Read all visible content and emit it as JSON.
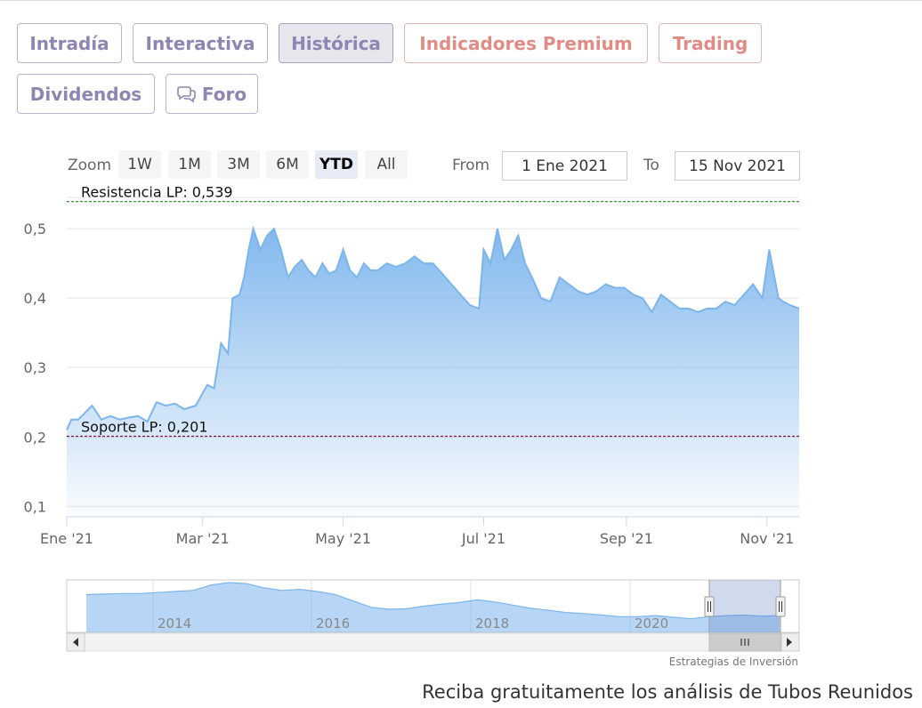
{
  "tabs": [
    {
      "label": "Intradía",
      "style": "normal"
    },
    {
      "label": "Interactiva",
      "style": "normal"
    },
    {
      "label": "Histórica",
      "style": "active"
    },
    {
      "label": "Indicadores Premium",
      "style": "premium"
    },
    {
      "label": "Trading",
      "style": "premium"
    },
    {
      "label": "Dividendos",
      "style": "normal"
    },
    {
      "label": "Foro",
      "style": "normal",
      "icon": "chat-bubbles-icon"
    }
  ],
  "range_selector": {
    "zoom_label": "Zoom",
    "buttons": [
      "1W",
      "1M",
      "3M",
      "6M",
      "YTD",
      "All"
    ],
    "selected": "YTD",
    "from_label": "From",
    "from_value": "1 Ene 2021",
    "to_label": "To",
    "to_value": "15 Nov 2021"
  },
  "chart_data": {
    "type": "area",
    "title": "",
    "xlabel": "",
    "ylabel": "",
    "x_ticks": [
      "Ene '21",
      "Mar '21",
      "May '21",
      "Jul '21",
      "Sep '21",
      "Nov '21"
    ],
    "y_ticks": [
      "0,1",
      "0,2",
      "0,3",
      "0,4",
      "0,5"
    ],
    "xlim": [
      "2021-01-01",
      "2021-11-15"
    ],
    "ylim": [
      0.085,
      0.545
    ],
    "grid": true,
    "color": "#7cb5ec",
    "plot_lines": [
      {
        "label": "Resistencia LP: 0,539",
        "value": 0.539,
        "color": "#228b22"
      },
      {
        "label": "Soporte LP: 0,201",
        "value": 0.201,
        "color": "#8b1a3a"
      }
    ],
    "series": [
      {
        "x": [
          "2021-01-01",
          "2021-01-03",
          "2021-01-06",
          "2021-01-09",
          "2021-01-12",
          "2021-01-16",
          "2021-01-20",
          "2021-01-24",
          "2021-01-28",
          "2021-02-01",
          "2021-02-05",
          "2021-02-09",
          "2021-02-13",
          "2021-02-17",
          "2021-02-21",
          "2021-02-26",
          "2021-03-03",
          "2021-03-06",
          "2021-03-09",
          "2021-03-12",
          "2021-03-14",
          "2021-03-17",
          "2021-03-19",
          "2021-03-21",
          "2021-03-23",
          "2021-03-26",
          "2021-03-29",
          "2021-04-01",
          "2021-04-04",
          "2021-04-07",
          "2021-04-10",
          "2021-04-13",
          "2021-04-16",
          "2021-04-19",
          "2021-04-22",
          "2021-04-25",
          "2021-04-28",
          "2021-05-01",
          "2021-05-04",
          "2021-05-07",
          "2021-05-10",
          "2021-05-13",
          "2021-05-16",
          "2021-05-20",
          "2021-05-24",
          "2021-05-28",
          "2021-06-01",
          "2021-06-05",
          "2021-06-09",
          "2021-06-13",
          "2021-06-17",
          "2021-06-21",
          "2021-06-25",
          "2021-06-29",
          "2021-07-01",
          "2021-07-04",
          "2021-07-07",
          "2021-07-10",
          "2021-07-13",
          "2021-07-16",
          "2021-07-19",
          "2021-07-22",
          "2021-07-26",
          "2021-07-30",
          "2021-08-03",
          "2021-08-07",
          "2021-08-11",
          "2021-08-15",
          "2021-08-19",
          "2021-08-23",
          "2021-08-27",
          "2021-08-31",
          "2021-09-04",
          "2021-09-08",
          "2021-09-12",
          "2021-09-16",
          "2021-09-20",
          "2021-09-24",
          "2021-09-28",
          "2021-10-02",
          "2021-10-06",
          "2021-10-10",
          "2021-10-14",
          "2021-10-18",
          "2021-10-22",
          "2021-10-26",
          "2021-10-30",
          "2021-11-02",
          "2021-11-04",
          "2021-11-06",
          "2021-11-08",
          "2021-11-11",
          "2021-11-15"
        ],
        "y": [
          0.21,
          0.225,
          0.225,
          0.235,
          0.245,
          0.225,
          0.23,
          0.225,
          0.228,
          0.23,
          0.222,
          0.25,
          0.245,
          0.248,
          0.24,
          0.245,
          0.275,
          0.27,
          0.335,
          0.32,
          0.4,
          0.405,
          0.43,
          0.47,
          0.5,
          0.47,
          0.49,
          0.5,
          0.47,
          0.43,
          0.445,
          0.455,
          0.44,
          0.43,
          0.45,
          0.435,
          0.44,
          0.47,
          0.44,
          0.43,
          0.45,
          0.44,
          0.44,
          0.45,
          0.445,
          0.45,
          0.46,
          0.45,
          0.45,
          0.435,
          0.42,
          0.405,
          0.39,
          0.385,
          0.47,
          0.45,
          0.5,
          0.455,
          0.47,
          0.49,
          0.45,
          0.43,
          0.4,
          0.395,
          0.43,
          0.42,
          0.41,
          0.405,
          0.41,
          0.42,
          0.415,
          0.415,
          0.405,
          0.4,
          0.38,
          0.405,
          0.395,
          0.385,
          0.385,
          0.38,
          0.385,
          0.385,
          0.395,
          0.39,
          0.405,
          0.42,
          0.4,
          0.47,
          0.435,
          0.4,
          0.395,
          0.39,
          0.385
        ]
      }
    ],
    "navigator": {
      "x_ticks": [
        "2014",
        "2016",
        "2018",
        "2020"
      ],
      "values": [
        0.72,
        0.73,
        0.74,
        0.74,
        0.76,
        0.78,
        0.8,
        0.9,
        0.95,
        0.93,
        0.85,
        0.8,
        0.82,
        0.78,
        0.72,
        0.6,
        0.48,
        0.44,
        0.45,
        0.5,
        0.54,
        0.57,
        0.62,
        0.58,
        0.52,
        0.46,
        0.42,
        0.38,
        0.36,
        0.33,
        0.3,
        0.3,
        0.32,
        0.29,
        0.26,
        0.3,
        0.32,
        0.33,
        0.31,
        0.32
      ]
    },
    "credit": "Estrategias de Inversión"
  },
  "footer": {
    "text": "Reciba gratuitamente los análisis de Tubos Reunidos"
  }
}
